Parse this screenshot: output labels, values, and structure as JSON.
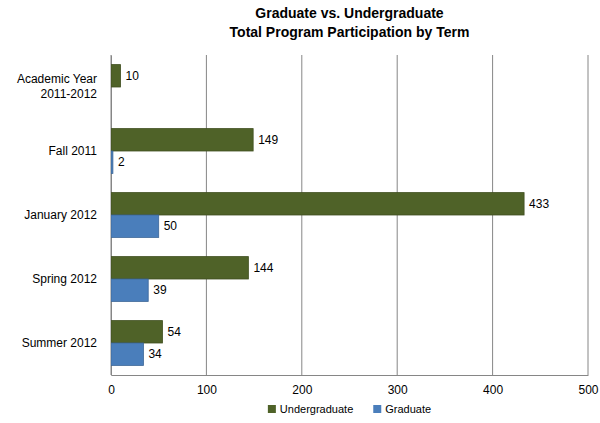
{
  "chart_data": {
    "type": "bar",
    "title": "Graduate vs. Undergraduate",
    "subtitle": "Total Program Participation by Term",
    "orientation": "horizontal",
    "categories": [
      "Academic Year 2011-2012",
      "Fall 2011",
      "January 2012",
      "Spring 2012",
      "Summer 2012"
    ],
    "series": [
      {
        "name": "Undergraduate",
        "color": "#4f6228",
        "values": [
          10,
          149,
          433,
          144,
          54
        ]
      },
      {
        "name": "Graduate",
        "color": "#4a7ebb",
        "values": [
          null,
          2,
          50,
          39,
          34
        ]
      }
    ],
    "xlim": [
      0,
      500
    ],
    "xticks": [
      0,
      100,
      200,
      300,
      400,
      500
    ],
    "grid": true,
    "legend": "bottom",
    "data_labels": true
  }
}
